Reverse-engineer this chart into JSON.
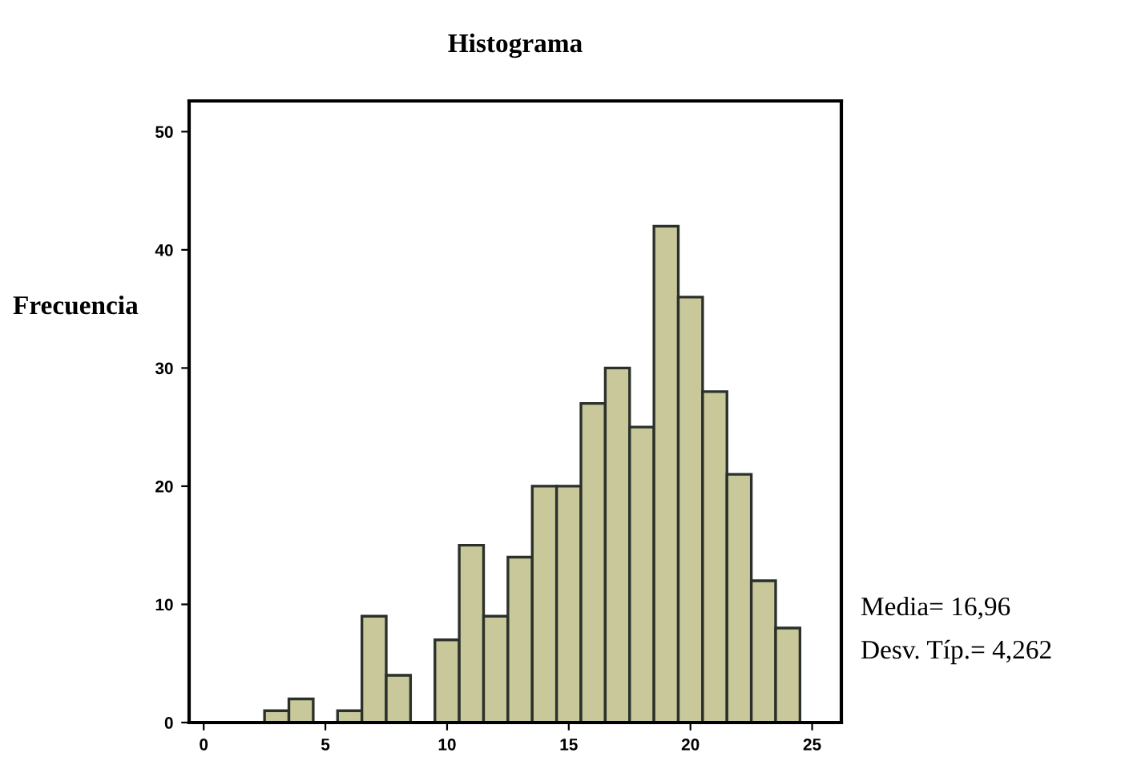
{
  "chart_data": {
    "type": "histogram",
    "title": "Histograma",
    "ylabel": "Frecuencia",
    "bins": [
      2.5,
      3.5,
      4.5,
      5.5,
      6.5,
      7.5,
      8.5,
      9.5,
      10.5,
      11.5,
      12.5,
      13.5,
      14.5,
      15.5,
      16.5,
      17.5,
      18.5,
      19.5,
      20.5,
      21.5,
      22.5,
      23.5,
      24.5
    ],
    "values": [
      1,
      2,
      0,
      1,
      9,
      4,
      0,
      7,
      15,
      9,
      14,
      20,
      20,
      27,
      30,
      25,
      42,
      36,
      28,
      21,
      12,
      8
    ],
    "color": "#c8c89a",
    "xlim": [
      -0.6,
      26.2
    ],
    "xticks": [
      0,
      5,
      10,
      15,
      20,
      25
    ],
    "ylim": [
      0,
      52.6
    ],
    "yticks": [
      0,
      10,
      20,
      30,
      40,
      50
    ],
    "grid": false,
    "annotations": [
      "Media= 16,96",
      "Desv. Típ.= 4,262"
    ]
  }
}
